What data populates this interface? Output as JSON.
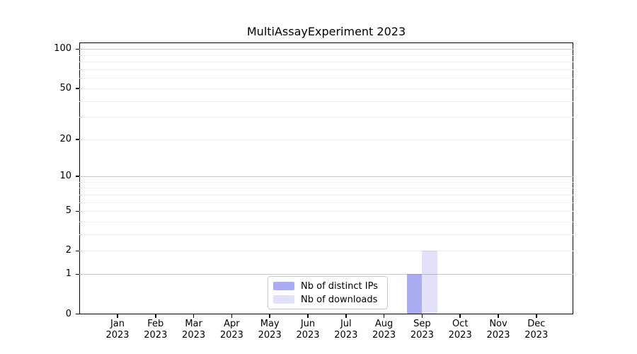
{
  "figure": {
    "title": "MultiAssayExperiment 2023"
  },
  "chart_data": {
    "type": "bar",
    "title": "MultiAssayExperiment 2023",
    "categories": [
      "Jan",
      "Feb",
      "Mar",
      "Apr",
      "May",
      "Jun",
      "Jul",
      "Aug",
      "Sep",
      "Oct",
      "Nov",
      "Dec"
    ],
    "year_label": "2023",
    "series": [
      {
        "name": "Nb of distinct IPs",
        "color": "rgba(88,88,230,0.50)",
        "values": [
          0,
          0,
          0,
          0,
          0,
          0,
          0,
          0,
          1,
          0,
          0,
          0
        ]
      },
      {
        "name": "Nb of downloads",
        "color": "rgba(88,88,230,0.18)",
        "values": [
          0,
          0,
          0,
          0,
          0,
          0,
          0,
          0,
          2,
          0,
          0,
          0
        ]
      }
    ],
    "yticks": [
      0,
      1,
      2,
      5,
      10,
      20,
      50,
      100
    ],
    "grid_major": [
      1,
      10,
      100
    ],
    "grid_minor": [
      2,
      3,
      4,
      5,
      6,
      7,
      8,
      9,
      20,
      30,
      40,
      50,
      60,
      70,
      80,
      90
    ],
    "scale": "log10(1+x)",
    "ylim": [
      0,
      112
    ],
    "grid": "on",
    "legend_position": "lower center (inside plot)",
    "xlabel": "",
    "ylabel": ""
  },
  "colors": {
    "background": "#ffffff",
    "axis": "#000000",
    "grid_major": "#c9c9c9",
    "grid_minor": "#ededed",
    "legend_border": "#c9c9c9"
  }
}
